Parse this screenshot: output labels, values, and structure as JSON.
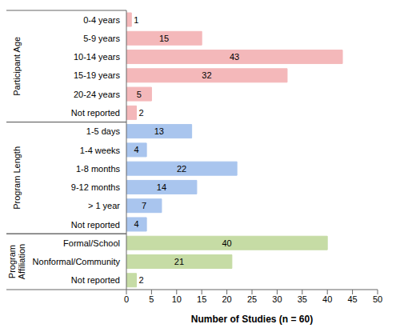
{
  "chart_data": {
    "type": "bar",
    "orientation": "horizontal",
    "data_labels": true,
    "xlabel": "Number of Studies (n = 60)",
    "xlim": [
      0,
      50
    ],
    "xticks": [
      0,
      5,
      10,
      15,
      20,
      25,
      30,
      35,
      40,
      45,
      50
    ],
    "groups": [
      {
        "name": "Participant Age",
        "color": "#f4b8ba",
        "categories": [
          "0-4 years",
          "5-9 years",
          "10-14 years",
          "15-19 years",
          "20-24 years",
          "Not reported"
        ],
        "values": [
          1,
          15,
          43,
          32,
          5,
          2
        ]
      },
      {
        "name": "Program Length",
        "color": "#a9c5ee",
        "categories": [
          "1-5 days",
          "1-4 weeks",
          "1-8 months",
          "9-12 months",
          "> 1 year",
          "Not reported"
        ],
        "values": [
          13,
          4,
          22,
          14,
          7,
          4
        ]
      },
      {
        "name": "Program Affiliation",
        "color": "#c6dca5",
        "categories": [
          "Formal/School",
          "Nonformal/Community",
          "Not reported"
        ],
        "values": [
          40,
          21,
          2
        ]
      }
    ]
  }
}
